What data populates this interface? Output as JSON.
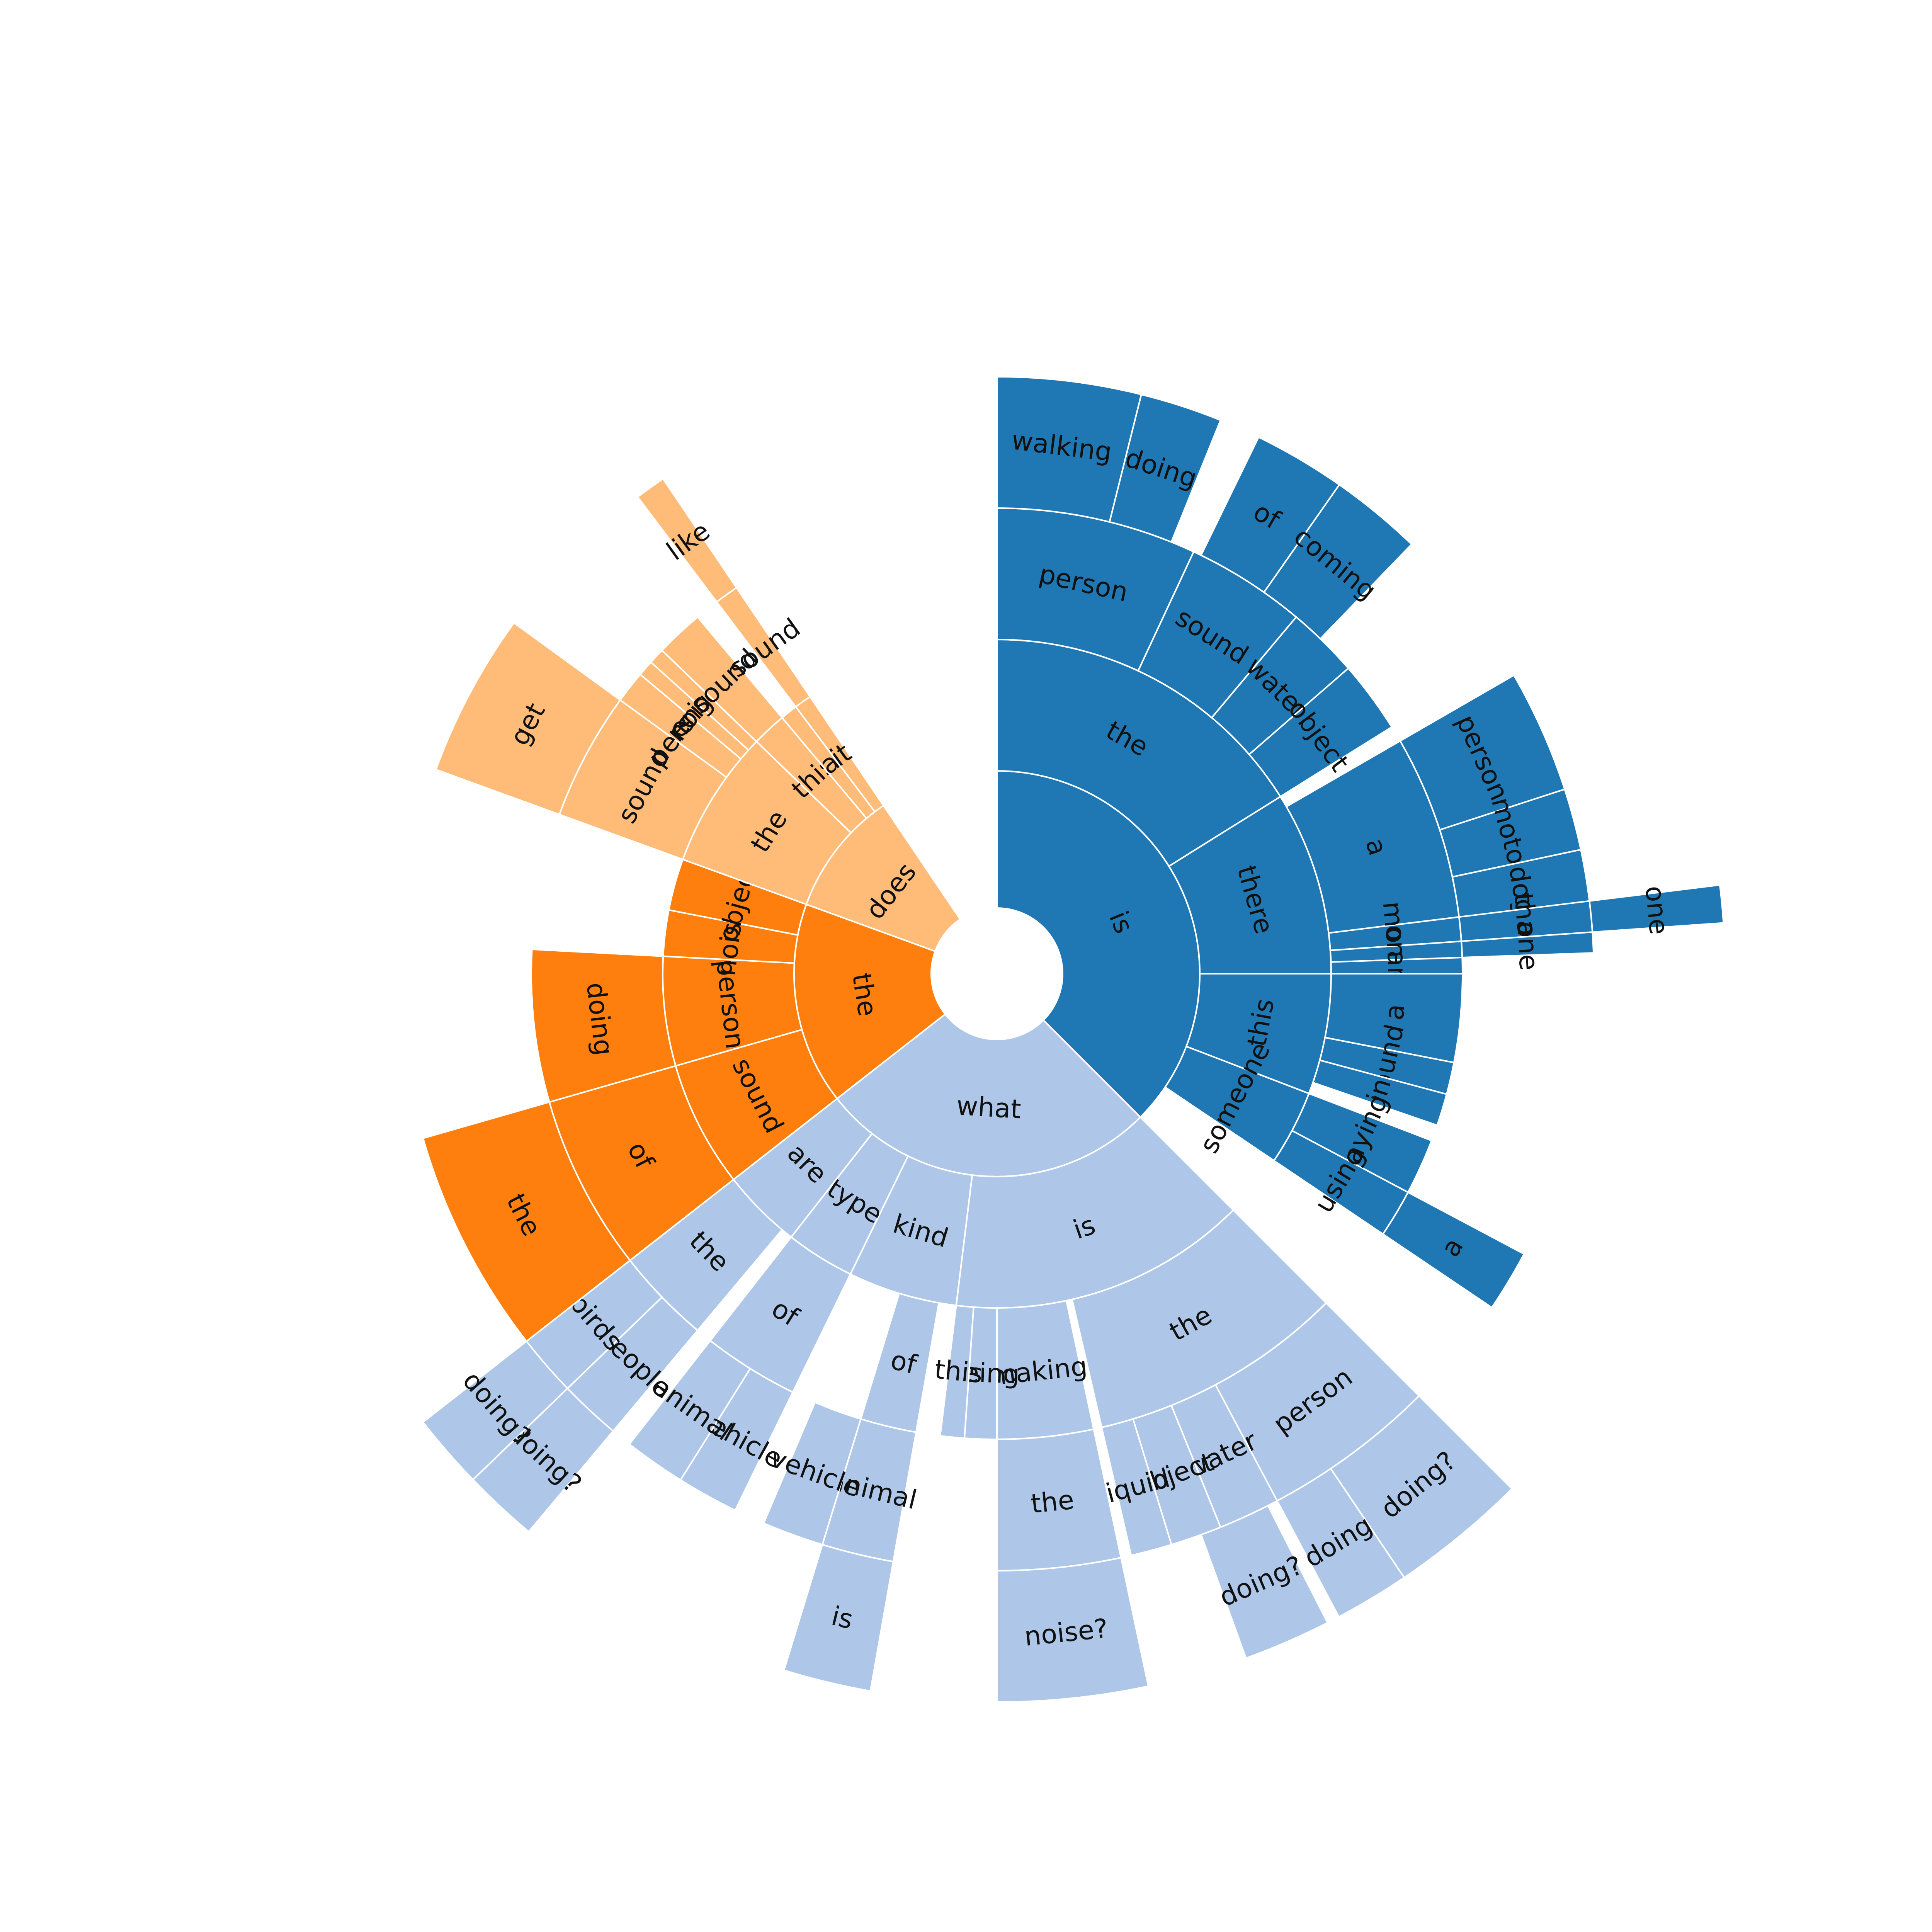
{
  "chart_data": {
    "type": "sunburst",
    "colors": {
      "is": "#1f77b4",
      "what": "#aec7e8",
      "the": "#ff7f0e",
      "does": "#ffbb78"
    },
    "tree": [
      {
        "label": "is",
        "color": "is",
        "a0": 0,
        "a1": 135,
        "children": [
          {
            "label": "the",
            "a0": 0,
            "a1": 58,
            "children": [
              {
                "label": "person",
                "a0": 0,
                "a1": 25,
                "children": [
                  {
                    "label": "walking",
                    "a0": 0,
                    "a1": 14
                  },
                  {
                    "label": "doing",
                    "a0": 14,
                    "a1": 22
                  }
                ]
              },
              {
                "label": "sound",
                "a0": 25,
                "a1": 40,
                "children": [
                  {
                    "label": "of",
                    "a0": 26,
                    "a1": 35
                  },
                  {
                    "label": "coming",
                    "a0": 35,
                    "a1": 44
                  }
                ]
              },
              {
                "label": "water",
                "a0": 40,
                "a1": 49
              },
              {
                "label": "object",
                "a0": 49,
                "a1": 58
              }
            ]
          },
          {
            "label": "there",
            "a0": 58,
            "a1": 90,
            "children": [
              {
                "label": "a",
                "a0": 60,
                "a1": 83,
                "children": [
                  {
                    "label": "person",
                    "a0": 60,
                    "a1": 72
                  },
                  {
                    "label": "motor",
                    "a0": 72,
                    "a1": 78
                  },
                  {
                    "label": "dog",
                    "a0": 78,
                    "a1": 84
                  }
                ]
              },
              {
                "label": "more",
                "a0": 83,
                "a1": 86,
                "children": [
                  {
                    "label": "than",
                    "a0": 83,
                    "a1": 86,
                    "children": [
                      {
                        "label": "one",
                        "a0": 83,
                        "a1": 86
                      }
                    ]
                  }
                ]
              },
              {
                "label": "only",
                "a0": 86,
                "a1": 88,
                "children": [
                  {
                    "label": "one",
                    "a0": 86,
                    "a1": 88
                  }
                ]
              },
              {
                "label": "an",
                "a0": 88,
                "a1": 90
              }
            ]
          },
          {
            "label": "this",
            "a0": 90,
            "a1": 111,
            "children": [
              {
                "label": "a",
                "a0": 90,
                "a1": 101
              },
              {
                "label": "sound",
                "a0": 101,
                "a1": 105
              },
              {
                "label": "in",
                "a0": 105,
                "a1": 109
              }
            ]
          },
          {
            "label": "someone",
            "a0": 111,
            "a1": 124,
            "children": [
              {
                "label": "playing",
                "a0": 111,
                "a1": 118
              },
              {
                "label": "using",
                "a0": 118,
                "a1": 124,
                "children": [
                  {
                    "label": "a",
                    "a0": 118,
                    "a1": 124
                  }
                ]
              }
            ]
          }
        ]
      },
      {
        "label": "what",
        "color": "what",
        "a0": 135,
        "a1": 232,
        "children": [
          {
            "label": "is",
            "a0": 135,
            "a1": 187,
            "children": [
              {
                "label": "the",
                "a0": 135,
                "a1": 167,
                "children": [
                  {
                    "label": "person",
                    "a0": 135,
                    "a1": 152,
                    "children": [
                      {
                        "label": "doing?",
                        "a0": 135,
                        "a1": 146
                      },
                      {
                        "label": "doing",
                        "a0": 146,
                        "a1": 152
                      }
                    ]
                  },
                  {
                    "label": "water",
                    "a0": 152,
                    "a1": 158,
                    "children": [
                      {
                        "label": "doing?",
                        "a0": 153,
                        "a1": 160
                      }
                    ]
                  },
                  {
                    "label": "object",
                    "a0": 158,
                    "a1": 163
                  },
                  {
                    "label": "liquid",
                    "a0": 163,
                    "a1": 167
                  }
                ]
              },
              {
                "label": "making",
                "a0": 168,
                "a1": 180,
                "children": [
                  {
                    "label": "the",
                    "a0": 168,
                    "a1": 180,
                    "children": [
                      {
                        "label": "noise?",
                        "a0": 168,
                        "a1": 180
                      }
                    ]
                  }
                ]
              },
              {
                "label": "being",
                "a0": 180,
                "a1": 184
              },
              {
                "label": "this",
                "a0": 184,
                "a1": 187
              }
            ]
          },
          {
            "label": "kind",
            "a0": 187,
            "a1": 206,
            "children": [
              {
                "label": "of",
                "a0": 190,
                "a1": 197,
                "children": [
                  {
                    "label": "animal",
                    "a0": 190,
                    "a1": 197,
                    "children": [
                      {
                        "label": "is",
                        "a0": 190,
                        "a1": 197
                      }
                    ]
                  },
                  {
                    "label": "vehicle",
                    "a0": 197,
                    "a1": 203
                  }
                ]
              }
            ]
          },
          {
            "label": "type",
            "a0": 206,
            "a1": 218,
            "children": [
              {
                "label": "of",
                "a0": 206,
                "a1": 218,
                "children": [
                  {
                    "label": "vehicle",
                    "a0": 206,
                    "a1": 212
                  },
                  {
                    "label": "animal",
                    "a0": 212,
                    "a1": 218
                  }
                ]
              }
            ]
          },
          {
            "label": "are",
            "a0": 218,
            "a1": 232,
            "children": [
              {
                "label": "the",
                "a0": 220,
                "a1": 232,
                "children": [
                  {
                    "label": "people",
                    "a0": 220,
                    "a1": 226,
                    "children": [
                      {
                        "label": "doing?",
                        "a0": 220,
                        "a1": 226
                      }
                    ]
                  },
                  {
                    "label": "birds",
                    "a0": 226,
                    "a1": 232,
                    "children": [
                      {
                        "label": "doing?",
                        "a0": 226,
                        "a1": 232
                      }
                    ]
                  }
                ]
              }
            ]
          }
        ]
      },
      {
        "label": "the",
        "color": "the",
        "a0": 232,
        "a1": 290,
        "children": [
          {
            "label": "sound",
            "a0": 232,
            "a1": 254,
            "children": [
              {
                "label": "of",
                "a0": 232,
                "a1": 254,
                "children": [
                  {
                    "label": "the",
                    "a0": 232,
                    "a1": 254
                  }
                ]
              }
            ]
          },
          {
            "label": "person",
            "a0": 254,
            "a1": 273,
            "children": [
              {
                "label": "doing",
                "a0": 254,
                "a1": 273
              }
            ]
          },
          {
            "label": "noise",
            "a0": 273,
            "a1": 281
          },
          {
            "label": "object",
            "a0": 281,
            "a1": 290
          }
        ]
      },
      {
        "label": "does",
        "color": "does",
        "a0": 290,
        "a1": 326,
        "children": [
          {
            "label": "the",
            "a0": 290,
            "a1": 314,
            "children": [
              {
                "label": "sound",
                "a0": 290,
                "a1": 306,
                "children": [
                  {
                    "label": "get",
                    "a0": 290,
                    "a1": 306
                  }
                ]
              },
              {
                "label": "person",
                "a0": 306,
                "a1": 310
              },
              {
                "label": "noise",
                "a0": 310,
                "a1": 312
              },
              {
                "label": "engine",
                "a0": 312,
                "a1": 314
              }
            ]
          },
          {
            "label": "this",
            "a0": 314,
            "a1": 320,
            "children": [
              {
                "label": "sound",
                "a0": 314,
                "a1": 320
              }
            ]
          },
          {
            "label": "a",
            "a0": 320,
            "a1": 323
          },
          {
            "label": "it",
            "a0": 323,
            "a1": 326,
            "children": [
              {
                "label": "sound",
                "a0": 323,
                "a1": 326,
                "children": [
                  {
                    "label": "like",
                    "a0": 323,
                    "a1": 326
                  }
                ]
              }
            ]
          }
        ]
      }
    ]
  }
}
